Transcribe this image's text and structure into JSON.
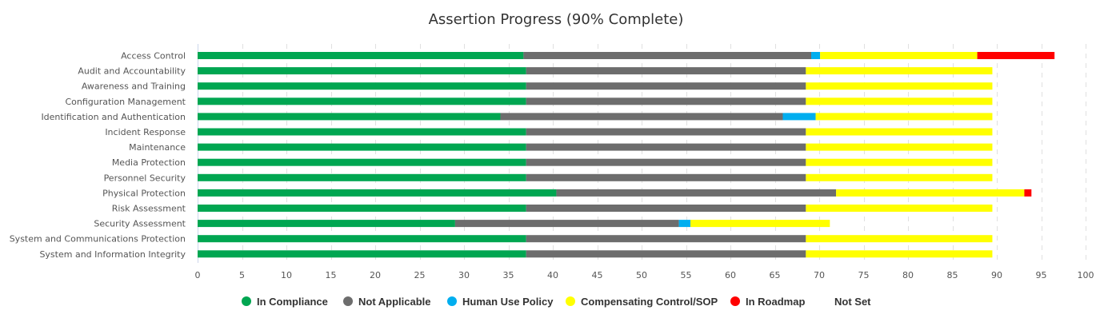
{
  "chart_data": {
    "type": "bar",
    "orientation": "horizontal",
    "stacked": true,
    "title": "Assertion Progress (90% Complete)",
    "xlabel": "",
    "ylabel": "",
    "xlim": [
      0,
      100
    ],
    "x_ticks": [
      0,
      5,
      10,
      15,
      20,
      25,
      30,
      35,
      40,
      45,
      50,
      55,
      60,
      65,
      70,
      75,
      80,
      85,
      90,
      95,
      100
    ],
    "grid": true,
    "legend_position": "bottom",
    "categories": [
      "Access Control",
      "Audit and Accountability",
      "Awareness and Training",
      "Configuration Management",
      "Identification and Authentication",
      "Incident Response",
      "Maintenance",
      "Media Protection",
      "Personnel Security",
      "Physical Protection",
      "Risk Assessment",
      "Security Assessment",
      "System and Communications Protection",
      "System and Information Integrity"
    ],
    "series": [
      {
        "name": "In Compliance",
        "color": "#00a651",
        "values": [
          36.7,
          37,
          37,
          37,
          34.1,
          37,
          37,
          37,
          37,
          40.4,
          37,
          29,
          37,
          37
        ]
      },
      {
        "name": "Not Applicable",
        "color": "#6d6d6d",
        "values": [
          32.4,
          31.5,
          31.5,
          31.5,
          31.8,
          31.5,
          31.5,
          31.5,
          31.5,
          31.5,
          31.5,
          25.2,
          31.5,
          31.5
        ]
      },
      {
        "name": "Human Use Policy",
        "color": "#00aeef",
        "values": [
          1,
          0,
          0,
          0,
          3.7,
          0,
          0,
          0,
          0,
          0,
          0,
          1.3,
          0,
          0
        ]
      },
      {
        "name": "Compensating Control/SOP",
        "color": "#ffff00",
        "values": [
          17.7,
          21,
          21,
          21,
          19.9,
          21,
          21,
          21,
          21,
          21.2,
          21,
          15.7,
          21,
          21
        ]
      },
      {
        "name": "In Roadmap",
        "color": "#ff0000",
        "values": [
          8.7,
          0,
          0,
          0,
          0,
          0,
          0,
          0,
          0,
          0.8,
          0,
          0,
          0,
          0
        ]
      },
      {
        "name": "Not Set",
        "color": "#ffffff",
        "values": [
          0,
          0,
          0,
          0,
          0,
          0,
          0,
          0,
          0,
          0,
          0,
          0,
          0,
          0
        ]
      }
    ]
  }
}
